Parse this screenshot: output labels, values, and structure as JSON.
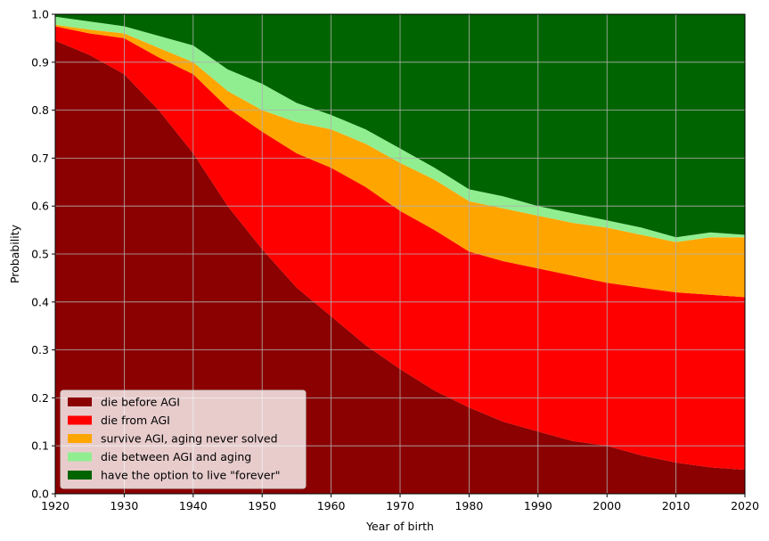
{
  "chart_data": {
    "type": "area",
    "stacked": true,
    "title": "",
    "xlabel": "Year of birth",
    "ylabel": "Probability",
    "xlim": [
      1920,
      2020
    ],
    "ylim": [
      0,
      1
    ],
    "grid": true,
    "legend_position": "lower-left",
    "x_ticks": [
      "1920",
      "1930",
      "1940",
      "1950",
      "1960",
      "1970",
      "1980",
      "1990",
      "2000",
      "2010",
      "2020"
    ],
    "y_ticks": [
      "0.0",
      "0.1",
      "0.2",
      "0.3",
      "0.4",
      "0.5",
      "0.6",
      "0.7",
      "0.8",
      "0.9",
      "1.0"
    ],
    "x": [
      1920,
      1925,
      1930,
      1935,
      1940,
      1945,
      1950,
      1955,
      1960,
      1965,
      1970,
      1975,
      1980,
      1985,
      1990,
      1995,
      2000,
      2005,
      2010,
      2015,
      2020
    ],
    "series": [
      {
        "name": "die before AGI",
        "color": "#8b0000",
        "values": [
          0.945,
          0.915,
          0.875,
          0.8,
          0.71,
          0.6,
          0.51,
          0.43,
          0.37,
          0.31,
          0.26,
          0.215,
          0.18,
          0.15,
          0.13,
          0.11,
          0.1,
          0.08,
          0.065,
          0.055,
          0.05
        ]
      },
      {
        "name": "die from AGI",
        "color": "#ff0000",
        "values": [
          0.03,
          0.045,
          0.075,
          0.11,
          0.165,
          0.205,
          0.245,
          0.28,
          0.31,
          0.33,
          0.33,
          0.335,
          0.325,
          0.335,
          0.34,
          0.345,
          0.34,
          0.35,
          0.355,
          0.36,
          0.36
        ]
      },
      {
        "name": "survive AGI, aging never solved",
        "color": "#ffa500",
        "values": [
          0.003,
          0.008,
          0.01,
          0.02,
          0.025,
          0.035,
          0.045,
          0.065,
          0.08,
          0.09,
          0.1,
          0.105,
          0.105,
          0.11,
          0.11,
          0.11,
          0.115,
          0.11,
          0.105,
          0.12,
          0.125
        ]
      },
      {
        "name": "die between AGI and aging",
        "color": "#90ee90",
        "values": [
          0.017,
          0.017,
          0.015,
          0.025,
          0.035,
          0.045,
          0.055,
          0.04,
          0.03,
          0.03,
          0.03,
          0.025,
          0.025,
          0.025,
          0.02,
          0.02,
          0.015,
          0.015,
          0.01,
          0.01,
          0.005
        ]
      },
      {
        "name": "have the option to live \"forever\"",
        "color": "#006400",
        "values": [
          0.005,
          0.015,
          0.025,
          0.045,
          0.065,
          0.115,
          0.145,
          0.185,
          0.21,
          0.24,
          0.28,
          0.32,
          0.365,
          0.38,
          0.4,
          0.415,
          0.43,
          0.445,
          0.465,
          0.455,
          0.46
        ]
      }
    ]
  }
}
